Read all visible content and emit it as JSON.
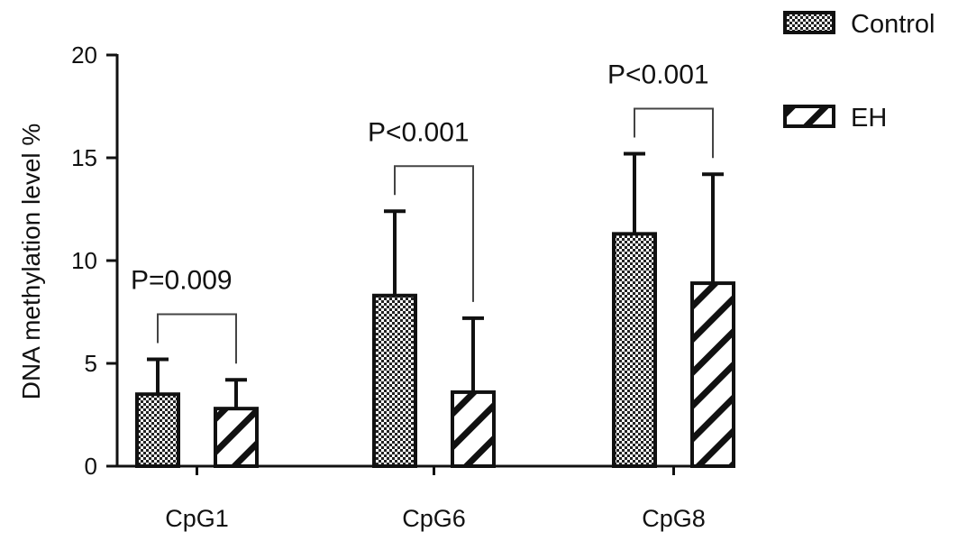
{
  "chart_data": {
    "type": "bar",
    "categories": [
      "CpG1",
      "CpG6",
      "CpG8"
    ],
    "series": [
      {
        "name": "Control",
        "values": [
          3.5,
          8.3,
          11.3
        ],
        "errors": [
          1.7,
          4.1,
          3.9
        ],
        "pattern": "dots"
      },
      {
        "name": "EH",
        "values": [
          2.8,
          3.6,
          8.9
        ],
        "errors": [
          1.4,
          3.6,
          5.3
        ],
        "pattern": "hatch"
      }
    ],
    "ylabel": "DNA methylation level %",
    "ylim": [
      0,
      20
    ],
    "yticks": [
      0,
      5,
      10,
      15,
      20
    ],
    "legend_position": "top-right",
    "annotations": [
      {
        "category": "CpG1",
        "text": "P=0.009"
      },
      {
        "category": "CpG6",
        "text": "P<0.001"
      },
      {
        "category": "CpG8",
        "text": "P<0.001"
      }
    ]
  }
}
